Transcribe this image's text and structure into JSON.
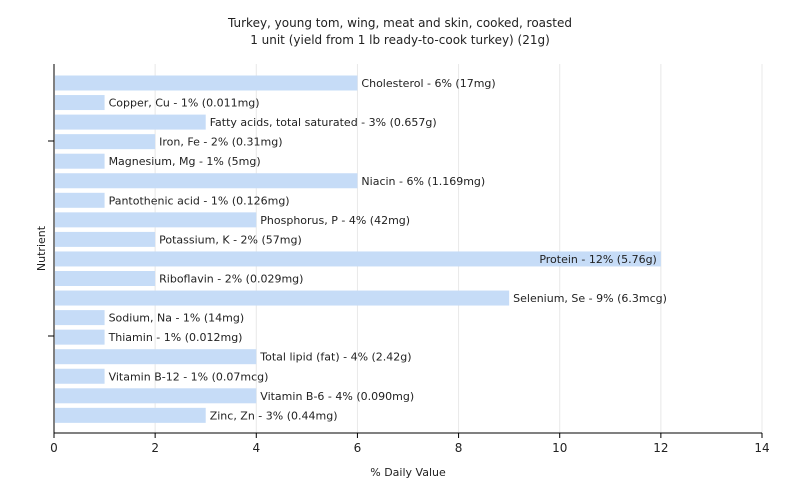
{
  "chart_data": {
    "type": "bar",
    "orientation": "horizontal",
    "title": "Turkey, young tom, wing, meat and skin, cooked, roasted",
    "subtitle": "1 unit (yield from 1 lb ready-to-cook turkey) (21g)",
    "xlabel": "% Daily Value",
    "ylabel": "Nutrient",
    "xlim": [
      0,
      14
    ],
    "xticks": [
      "0",
      "2",
      "4",
      "6",
      "8",
      "10",
      "12",
      "14"
    ],
    "grid": true,
    "bar_color": "#c6dcf7",
    "categories": [
      "Cholesterol",
      "Copper, Cu",
      "Fatty acids, total saturated",
      "Iron, Fe",
      "Magnesium, Mg",
      "Niacin",
      "Pantothenic acid",
      "Phosphorus, P",
      "Potassium, K",
      "Protein",
      "Riboflavin",
      "Selenium, Se",
      "Sodium, Na",
      "Thiamin",
      "Total lipid (fat)",
      "Vitamin B-12",
      "Vitamin B-6",
      "Zinc, Zn"
    ],
    "values": [
      6,
      1,
      3,
      2,
      1,
      6,
      1,
      4,
      2,
      12,
      2,
      9,
      1,
      1,
      4,
      1,
      4,
      3
    ],
    "labels": [
      "Cholesterol - 6% (17mg)",
      "Copper, Cu - 1% (0.011mg)",
      "Fatty acids, total saturated - 3% (0.657g)",
      "Iron, Fe - 2% (0.31mg)",
      "Magnesium, Mg - 1% (5mg)",
      "Niacin - 6% (1.169mg)",
      "Pantothenic acid - 1% (0.126mg)",
      "Phosphorus, P - 4% (42mg)",
      "Potassium, K - 2% (57mg)",
      "Protein - 12% (5.76g)",
      "Riboflavin - 2% (0.029mg)",
      "Selenium, Se - 9% (6.3mcg)",
      "Sodium, Na - 1% (14mg)",
      "Thiamin - 1% (0.012mg)",
      "Total lipid (fat) - 4% (2.42g)",
      "Vitamin B-12 - 1% (0.07mcg)",
      "Vitamin B-6 - 4% (0.090mg)",
      "Zinc, Zn - 3% (0.44mg)"
    ]
  }
}
